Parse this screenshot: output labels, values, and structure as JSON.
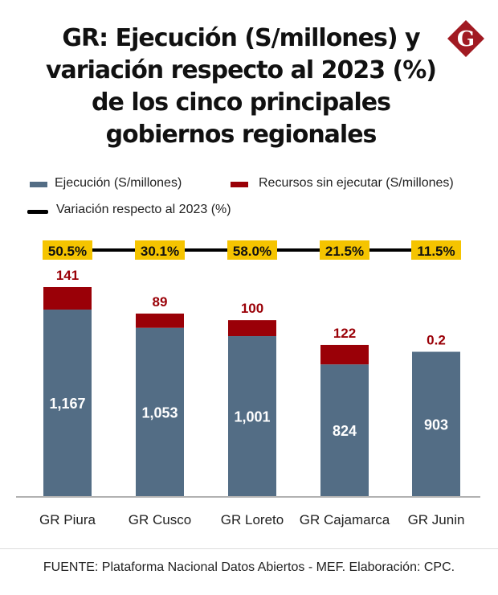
{
  "header": {
    "title_lines": [
      "GR: Ejecución (S/millones) y",
      "variación respecto al 2023 (%)",
      "de los cinco principales",
      "gobiernos regionales"
    ],
    "logo_letter": "G",
    "logo_icon": "diamond-g-logo-icon"
  },
  "footer": {
    "source": "FUENTE: Plataforma Nacional Datos Abiertos - MEF. Elaboración: CPC."
  },
  "colors": {
    "ejecucion": "#536d85",
    "sin_ejecutar": "#9a0007",
    "variacion_line": "#000000",
    "badge_bg": "#f5c400",
    "logo": "#a11a22"
  },
  "chart_data": {
    "type": "bar",
    "stacked": true,
    "title": "GR: Ejecución (S/millones) y variación respecto al 2023 (%) de los cinco principales gobiernos regionales",
    "categories": [
      "GR Piura",
      "GR Cusco",
      "GR Loreto",
      "GR Cajamarca",
      "GR Junin"
    ],
    "series": [
      {
        "name": "Ejecución (S/millones)",
        "values": [
          1167,
          1053,
          1001,
          824,
          903
        ],
        "labels": [
          "1,167",
          "1,053",
          "1,001",
          "824",
          "903"
        ]
      },
      {
        "name": "Recursos sin ejecutar (S/millones)",
        "values": [
          141,
          89,
          100,
          122,
          0.2
        ],
        "labels": [
          "141",
          "89",
          "100",
          "122",
          "0.2"
        ]
      }
    ],
    "line_series": {
      "name": "Variación respecto al 2023 (%)",
      "values": [
        50.5,
        30.1,
        58.0,
        21.5,
        11.5
      ],
      "labels": [
        "50.5%",
        "30.1%",
        "58.0%",
        "21.5%",
        "11.5%"
      ]
    },
    "legend": [
      "Ejecución (S/millones)",
      "Recursos sin ejecutar (S/millones)",
      "Variación respecto al 2023 (%)"
    ],
    "legend_position": "top",
    "xlabel": "",
    "ylabel": "",
    "ylim": [
      0,
      1310
    ],
    "grid": false
  }
}
